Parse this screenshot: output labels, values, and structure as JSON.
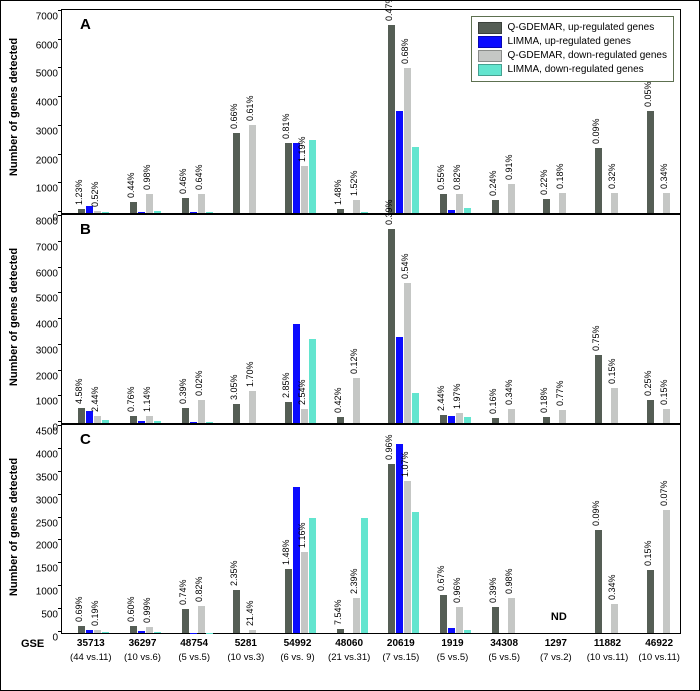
{
  "colors": {
    "qg_up": "#555e55",
    "limma_up": "#0b0bff",
    "qg_down": "#c5c7c5",
    "limma_down": "#63e5cf",
    "bg": "#ffffff"
  },
  "legend": {
    "items": [
      {
        "label": "Q-GDEMAR, up-regulated genes",
        "color": "#555e55"
      },
      {
        "label": "LIMMA, up-regulated genes",
        "color": "#0b0bff"
      },
      {
        "label": "Q-GDEMAR, down-regulated genes",
        "color": "#c5c7c5"
      },
      {
        "label": "LIMMA, down-regulated genes",
        "color": "#63e5cf"
      }
    ]
  },
  "x_axis": {
    "title": "GSE",
    "groups": [
      {
        "id": "35713",
        "sub": "(44 vs.11)"
      },
      {
        "id": "36297",
        "sub": "(10 vs.6)"
      },
      {
        "id": "48754",
        "sub": "(5 vs.5)"
      },
      {
        "id": "5281",
        "sub": "(10 vs.3)"
      },
      {
        "id": "54992",
        "sub": "(6 vs. 9)"
      },
      {
        "id": "48060",
        "sub": "(21 vs.31)"
      },
      {
        "id": "20619",
        "sub": "(7 vs.15)"
      },
      {
        "id": "1919",
        "sub": "(5 vs.5)"
      },
      {
        "id": "34308",
        "sub": "(5 vs.5)"
      },
      {
        "id": "1297",
        "sub": "(7 vs.2)"
      },
      {
        "id": "11882",
        "sub": "(10 vs.11)"
      },
      {
        "id": "46922",
        "sub": "(10 vs.11)"
      }
    ]
  },
  "panels": [
    {
      "letter": "A",
      "ylim": [
        0,
        7000
      ],
      "ytick_step": 1000,
      "y_label": "Number of genes detected",
      "groups": [
        {
          "bars": [
            150,
            250,
            60,
            50
          ],
          "pcts": [
            "1.23%",
            "0.52%",
            "",
            ""
          ],
          "pctpos": [
            0,
            2
          ]
        },
        {
          "bars": [
            400,
            30,
            650,
            80
          ],
          "pcts": [
            "0.44%",
            "0.98%",
            "",
            ""
          ],
          "pctpos": [
            0,
            2
          ]
        },
        {
          "bars": [
            520,
            20,
            650,
            30
          ],
          "pcts": [
            "0.46%",
            "0.64%",
            "",
            ""
          ],
          "pctpos": [
            0,
            2
          ]
        },
        {
          "bars": [
            2800,
            0,
            3050,
            0
          ],
          "pcts": [
            "0.66%",
            "0.61%",
            "",
            ""
          ],
          "pctpos": [
            0,
            2
          ]
        },
        {
          "bars": [
            2450,
            2450,
            1650,
            2550
          ],
          "pcts": [
            "0.81%",
            "1.19%",
            "",
            ""
          ],
          "pctpos": [
            0,
            2
          ]
        },
        {
          "bars": [
            150,
            0,
            450,
            40
          ],
          "pcts": [
            "1.48%",
            "1.52%",
            "",
            ""
          ],
          "pctpos": [
            0,
            2
          ]
        },
        {
          "bars": [
            6550,
            3550,
            5050,
            2300
          ],
          "pcts": [
            "0.47%",
            "0.68%",
            "",
            ""
          ],
          "pctpos": [
            0,
            2
          ]
        },
        {
          "bars": [
            650,
            120,
            650,
            160
          ],
          "pcts": [
            "0.55%",
            "0.82%",
            "",
            ""
          ],
          "pctpos": [
            0,
            2
          ]
        },
        {
          "bars": [
            450,
            0,
            1000,
            0
          ],
          "pcts": [
            "0.24%",
            "0.91%",
            "",
            ""
          ],
          "pctpos": [
            0,
            2
          ]
        },
        {
          "bars": [
            500,
            0,
            700,
            0
          ],
          "pcts": [
            "0.22%",
            "0.18%",
            "",
            ""
          ],
          "pctpos": [
            0,
            2
          ]
        },
        {
          "bars": [
            2250,
            0,
            700,
            0
          ],
          "pcts": [
            "0.09%",
            "0.32%",
            "",
            ""
          ],
          "pctpos": [
            0,
            2
          ]
        },
        {
          "bars": [
            3550,
            0,
            700,
            0
          ],
          "pcts": [
            "0.05%",
            "0.34%",
            "",
            ""
          ],
          "pctpos": [
            0,
            2
          ]
        }
      ]
    },
    {
      "letter": "B",
      "ylim": [
        0,
        8000
      ],
      "ytick_step": 1000,
      "y_label": "Number of genes detected",
      "groups": [
        {
          "bars": [
            600,
            450,
            260,
            100
          ],
          "pcts": [
            "4.58%",
            "2.44%",
            "",
            ""
          ],
          "pctpos": [
            0,
            2
          ]
        },
        {
          "bars": [
            280,
            70,
            260,
            80
          ],
          "pcts": [
            "0.76%",
            "1.14%",
            "",
            ""
          ],
          "pctpos": [
            0,
            2
          ]
        },
        {
          "bars": [
            600,
            30,
            900,
            40
          ],
          "pcts": [
            "0.39%",
            "0.02%",
            "",
            ""
          ],
          "pctpos": [
            0,
            2
          ]
        },
        {
          "bars": [
            750,
            0,
            1250,
            0
          ],
          "pcts": [
            "3.05%",
            "1.70%",
            "",
            ""
          ],
          "pctpos": [
            0,
            2
          ]
        },
        {
          "bars": [
            800,
            3850,
            550,
            3250
          ],
          "pcts": [
            "2.85%",
            "2.54%",
            "",
            ""
          ],
          "pctpos": [
            0,
            2
          ]
        },
        {
          "bars": [
            220,
            0,
            1750,
            0
          ],
          "pcts": [
            "0.42%",
            "0.12%",
            "",
            ""
          ],
          "pctpos": [
            0,
            2
          ]
        },
        {
          "bars": [
            7550,
            3350,
            5450,
            1150
          ],
          "pcts": [
            "0.39%",
            "0.54%",
            "",
            ""
          ],
          "pctpos": [
            0,
            2
          ]
        },
        {
          "bars": [
            320,
            260,
            370,
            250
          ],
          "pcts": [
            "2.44%",
            "1.97%",
            "",
            ""
          ],
          "pctpos": [
            0,
            2
          ]
        },
        {
          "bars": [
            200,
            0,
            550,
            0
          ],
          "pcts": [
            "0.16%",
            "0.34%",
            "",
            ""
          ],
          "pctpos": [
            0,
            2
          ]
        },
        {
          "bars": [
            250,
            0,
            500,
            0
          ],
          "pcts": [
            "0.18%",
            "0.77%",
            "",
            ""
          ],
          "pctpos": [
            0,
            2
          ]
        },
        {
          "bars": [
            2650,
            0,
            1350,
            0
          ],
          "pcts": [
            "0.75%",
            "0.15%",
            "",
            ""
          ],
          "pctpos": [
            0,
            2
          ]
        },
        {
          "bars": [
            900,
            0,
            550,
            0
          ],
          "pcts": [
            "0.25%",
            "0.15%",
            "",
            ""
          ],
          "pctpos": [
            0,
            2
          ]
        }
      ]
    },
    {
      "letter": "C",
      "ylim": [
        0,
        4500
      ],
      "ytick_step": 500,
      "y_label": "Number of genes detected",
      "groups": [
        {
          "bars": [
            160,
            70,
            60,
            30
          ],
          "pcts": [
            "0.69%",
            "0.19%",
            "",
            ""
          ],
          "pctpos": [
            0,
            2
          ]
        },
        {
          "bars": [
            150,
            40,
            130,
            30
          ],
          "pcts": [
            "0.60%",
            "0.99%",
            "",
            ""
          ],
          "pctpos": [
            0,
            2
          ]
        },
        {
          "bars": [
            520,
            10,
            600,
            10
          ],
          "pcts": [
            "0.74%",
            "0.82%",
            "",
            ""
          ],
          "pctpos": [
            0,
            2
          ]
        },
        {
          "bars": [
            940,
            0,
            60,
            0
          ],
          "pcts": [
            "2.35%",
            "21.4%",
            "",
            ""
          ],
          "pctpos": [
            0,
            2
          ]
        },
        {
          "bars": [
            1400,
            3180,
            1760,
            2520
          ],
          "pcts": [
            "1.48%",
            "1.16%",
            "",
            ""
          ],
          "pctpos": [
            0,
            2
          ]
        },
        {
          "bars": [
            80,
            0,
            760,
            2520
          ],
          "pcts": [
            "7.54%",
            "2.39%",
            "",
            ""
          ],
          "pctpos": [
            0,
            2
          ]
        },
        {
          "bars": [
            3700,
            4120,
            3320,
            2640
          ],
          "pcts": [
            "0.96%",
            "1.07%",
            "",
            ""
          ],
          "pctpos": [
            0,
            2
          ]
        },
        {
          "bars": [
            820,
            120,
            560,
            60
          ],
          "pcts": [
            "0.67%",
            "0.96%",
            "",
            ""
          ],
          "pctpos": [
            0,
            2
          ]
        },
        {
          "bars": [
            570,
            0,
            760,
            0
          ],
          "pcts": [
            "0.39%",
            "0.98%",
            "",
            ""
          ],
          "pctpos": [
            0,
            2
          ]
        },
        {
          "bars": [
            0,
            0,
            0,
            0
          ],
          "pcts": [
            "",
            "",
            "",
            ""
          ],
          "nd": "ND",
          "pctpos": [
            0,
            2
          ]
        },
        {
          "bars": [
            2250,
            0,
            630,
            0
          ],
          "pcts": [
            "0.09%",
            "0.34%",
            "",
            ""
          ],
          "pctpos": [
            0,
            2
          ]
        },
        {
          "bars": [
            1380,
            0,
            2680,
            0
          ],
          "pcts": [
            "0.15%",
            "0.07%",
            "",
            ""
          ],
          "pctpos": [
            0,
            2
          ]
        }
      ]
    }
  ]
}
